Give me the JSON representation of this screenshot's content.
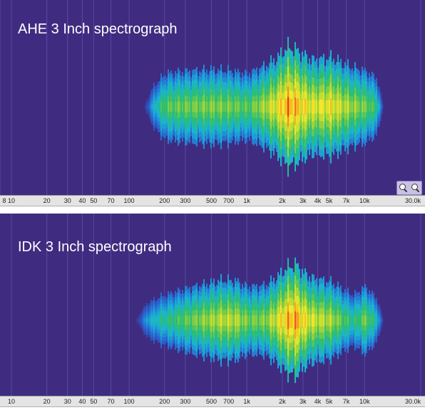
{
  "chart_data": [
    {
      "type": "heatmap",
      "title": "AHE 3 Inch  spectrograph",
      "xscale": "log",
      "xlim": [
        8,
        30000
      ],
      "tick_labels": [
        "8",
        "10",
        "20",
        "30",
        "40",
        "50",
        "70",
        "100",
        "200",
        "300",
        "500",
        "700",
        "1k",
        "2k",
        "3k",
        "4k",
        "5k",
        "7k",
        "10k",
        "30.0k"
      ],
      "tick_values": [
        8,
        10,
        20,
        30,
        40,
        50,
        70,
        100,
        200,
        300,
        500,
        700,
        1000,
        2000,
        3000,
        4000,
        5000,
        7000,
        10000,
        30000
      ],
      "energy_profile": {
        "freq_hz": [
          130,
          160,
          200,
          260,
          350,
          500,
          700,
          1000,
          1400,
          1800,
          2200,
          2600,
          3000,
          3600,
          4300,
          5200,
          6500,
          8000,
          10000,
          12500,
          14500
        ],
        "intensity": [
          0.0,
          0.35,
          0.55,
          0.58,
          0.6,
          0.62,
          0.6,
          0.55,
          0.68,
          0.82,
          1.0,
          0.95,
          0.86,
          0.78,
          0.8,
          0.82,
          0.72,
          0.65,
          0.6,
          0.48,
          0.0
        ],
        "peak_hz": 2200
      },
      "colormap": [
        "#3f2c80",
        "#2a5fd0",
        "#19b3d8",
        "#2dbf6a",
        "#9fd23a",
        "#f2ea2a",
        "#f5a623",
        "#ee3322"
      ],
      "zoom_buttons": true
    },
    {
      "type": "heatmap",
      "title": "IDK 3 Inch  spectrograph",
      "xscale": "log",
      "xlim": [
        8,
        30000
      ],
      "tick_labels": [
        "10",
        "20",
        "30",
        "40",
        "50",
        "70",
        "100",
        "200",
        "300",
        "500",
        "700",
        "1k",
        "2k",
        "3k",
        "4k",
        "5k",
        "7k",
        "10k",
        "30.0k"
      ],
      "tick_values": [
        10,
        20,
        30,
        40,
        50,
        70,
        100,
        200,
        300,
        500,
        700,
        1000,
        2000,
        3000,
        4000,
        5000,
        7000,
        10000,
        30000
      ],
      "energy_profile": {
        "freq_hz": [
          110,
          140,
          180,
          240,
          320,
          450,
          620,
          800,
          1000,
          1400,
          1800,
          2200,
          2600,
          3000,
          3600,
          4300,
          5200,
          6500,
          8000,
          10000,
          12500,
          14500
        ],
        "intensity": [
          0.0,
          0.3,
          0.42,
          0.5,
          0.58,
          0.65,
          0.72,
          0.7,
          0.6,
          0.62,
          0.78,
          0.95,
          1.0,
          0.85,
          0.75,
          0.72,
          0.68,
          0.55,
          0.45,
          0.6,
          0.4,
          0.0
        ],
        "peak_hz": 2600
      },
      "colormap": [
        "#3f2c80",
        "#2a5fd0",
        "#19b3d8",
        "#2dbf6a",
        "#9fd23a",
        "#f2ea2a",
        "#f5a623",
        "#ee3322"
      ],
      "zoom_buttons": false
    }
  ]
}
